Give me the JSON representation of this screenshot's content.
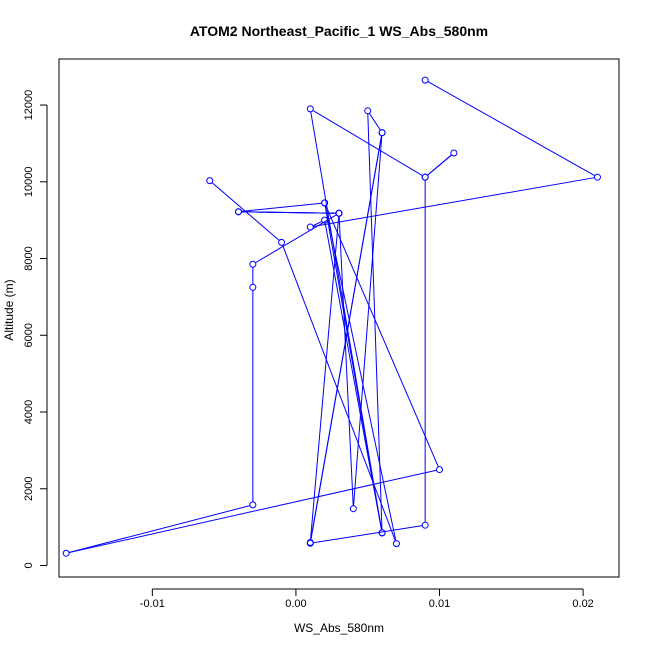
{
  "chart_data": {
    "type": "line",
    "title": "ATOM2 Northeast_Pacific_1 WS_Abs_580nm",
    "xlabel": "WS_Abs_580nm",
    "ylabel": "Altitude (m)",
    "xlim": [
      -0.0165,
      0.0225
    ],
    "ylim": [
      -300,
      13200
    ],
    "xticks": [
      -0.01,
      0.0,
      0.01,
      0.02
    ],
    "xtick_labels": [
      "-0.01",
      "0.00",
      "0.01",
      "0.02"
    ],
    "yticks": [
      0,
      2000,
      4000,
      6000,
      8000,
      10000,
      12000
    ],
    "ytick_labels": [
      "0",
      "2000",
      "4000",
      "6000",
      "8000",
      "10000",
      "12000"
    ],
    "grid": false,
    "legend": "none",
    "line_color": "#0000ff",
    "marker": "open-circle",
    "series": [
      {
        "x": [
          0.009,
          0.021,
          0.001,
          0.002,
          0.006,
          0.005,
          0.006,
          0.001,
          0.003,
          -0.004,
          0.002,
          0.006,
          0.001,
          0.009,
          0.011,
          0.009,
          0.009,
          0.001,
          0.006,
          0.004,
          0.003,
          -0.004,
          0.003,
          -0.003,
          -0.003,
          -0.003,
          -0.016,
          0.01,
          0.002,
          0.007,
          -0.001,
          -0.006
        ],
        "y": [
          12650,
          10120,
          8820,
          9000,
          850,
          11850,
          11280,
          600,
          9180,
          9220,
          9450,
          850,
          11900,
          10120,
          10750,
          10120,
          1050,
          580,
          11280,
          1480,
          9180,
          9220,
          9180,
          7850,
          7250,
          1580,
          320,
          2500,
          9450,
          570,
          8420,
          10030
        ]
      }
    ]
  }
}
